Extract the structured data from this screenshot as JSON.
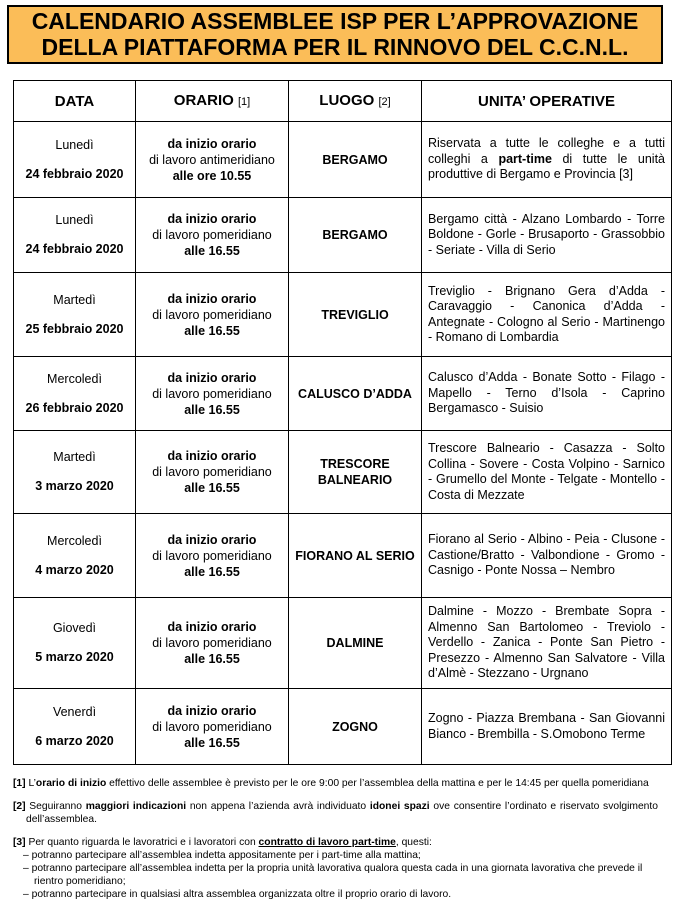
{
  "title": {
    "line1": "CALENDARIO ASSEMBLEE ISP PER L’APPROVAZIONE",
    "line2": "DELLA PIATTAFORMA PER IL RINNOVO DEL C.C.N.L."
  },
  "headers": {
    "data": "DATA",
    "orario": "ORARIO",
    "orario_ref": "[1]",
    "luogo": "LUOGO",
    "luogo_ref": "[2]",
    "unita": "UNITA’ OPERATIVE"
  },
  "rows": [
    {
      "day": "Lunedì",
      "date": "24 febbraio 2020",
      "o1": "da inizio orario",
      "o2": "di lavoro antimeridiano",
      "o3": "alle ore 10.55",
      "place": "BERGAMO",
      "units_pre": "Riservata a tutte le colleghe e a tutti colleghi a ",
      "units_bold": "part-time",
      "units_post": " di tutte le unità produttive di Bergamo e Provincia [3]"
    },
    {
      "day": "Lunedì",
      "date": "24 febbraio 2020",
      "o1": "da inizio orario",
      "o2": "di lavoro pomeridiano",
      "o3": "alle 16.55",
      "place": "BERGAMO",
      "units": "Bergamo città - Alzano Lombardo - Torre Boldone - Gorle - Brusaporto - Grassobbio - Seriate - Villa di Serio"
    },
    {
      "day": "Martedì",
      "date": "25 febbraio 2020",
      "o1": "da inizio orario",
      "o2": "di lavoro pomeridiano",
      "o3": "alle 16.55",
      "place": "TREVIGLIO",
      "units": "Treviglio - Brignano Gera d’Adda - Caravaggio - Canonica d’Adda - Antegnate - Cologno al Serio - Martinengo - Romano di Lombardia"
    },
    {
      "day": "Mercoledì",
      "date": "26 febbraio 2020",
      "o1": "da inizio orario",
      "o2": "di lavoro pomeridiano",
      "o3": "alle 16.55",
      "place": "CALUSCO D’ADDA",
      "units": "Calusco d’Adda - Bonate Sotto - Filago - Mapello - Terno d’Isola - Caprino Bergamasco - Suisio"
    },
    {
      "day": "Martedì",
      "date": "3 marzo 2020",
      "o1": "da inizio orario",
      "o2": "di lavoro pomeridiano",
      "o3": "alle 16.55",
      "place": "TRESCORE BALNEARIO",
      "units": "Trescore Balneario - Casazza - Solto Collina - Sovere - Costa Volpino - Sarnico - Grumello del Monte - Telgate - Montello - Costa di Mezzate"
    },
    {
      "day": "Mercoledì",
      "date": "4 marzo 2020",
      "o1": "da inizio orario",
      "o2": "di lavoro pomeridiano",
      "o3": "alle 16.55",
      "place": "FIORANO AL SERIO",
      "units": "Fiorano al Serio - Albino - Peia - Clusone - Castione/Bratto - Valbondione - Gromo - Casnigo - Ponte Nossa – Nembro"
    },
    {
      "day": "Giovedì",
      "date": "5 marzo 2020",
      "o1": "da inizio orario",
      "o2": "di lavoro pomeridiano",
      "o3": "alle 16.55",
      "place": "DALMINE",
      "units": "Dalmine - Mozzo - Brembate Sopra - Almenno San Bartolomeo - Treviolo - Verdello - Zanica - Ponte San Pietro - Presezzo - Almenno San Salvatore - Villa d’Almè - Stezzano - Urgnano"
    },
    {
      "day": "Venerdì",
      "date": "6 marzo 2020",
      "o1": "da inizio orario",
      "o2": "di lavoro pomeridiano",
      "o3": "alle 16.55",
      "place": "ZOGNO",
      "units": "Zogno - Piazza Brembana - San Giovanni Bianco - Brembilla - S.Omobono Terme"
    }
  ],
  "notes": {
    "n1": {
      "ref": "[1]",
      "a": " L’",
      "b": "orario di inizio",
      "c": " effettivo delle assemblee è previsto per le ore 9:00 per l’assemblea della mattina e per le 14:45 per quella pomeridiana"
    },
    "n2": {
      "ref": "[2]",
      "a": " Seguiranno ",
      "b": "maggiori indicazioni",
      "c": " non appena l’azienda avrà individuato ",
      "d": "idonei spazi",
      "e": " ove consentire l’ordinato e riservato svolgimento dell’assemblea."
    },
    "n3": {
      "ref": "[3]",
      "a": " Per quanto riguarda le lavoratrici e i lavoratori con ",
      "b": "contratto di lavoro part-time",
      "c": ", questi:",
      "items": [
        "– potranno partecipare all’assemblea indetta appositamente per i part-time alla mattina;",
        "– potranno partecipare all’assemblea indetta per la propria unità lavorativa qualora questa cada in una giornata lavorativa che prevede il rientro pomeridiano;",
        "– potranno partecipare in qualsiasi altra assemblea organizzata oltre il proprio orario di lavoro."
      ]
    }
  }
}
